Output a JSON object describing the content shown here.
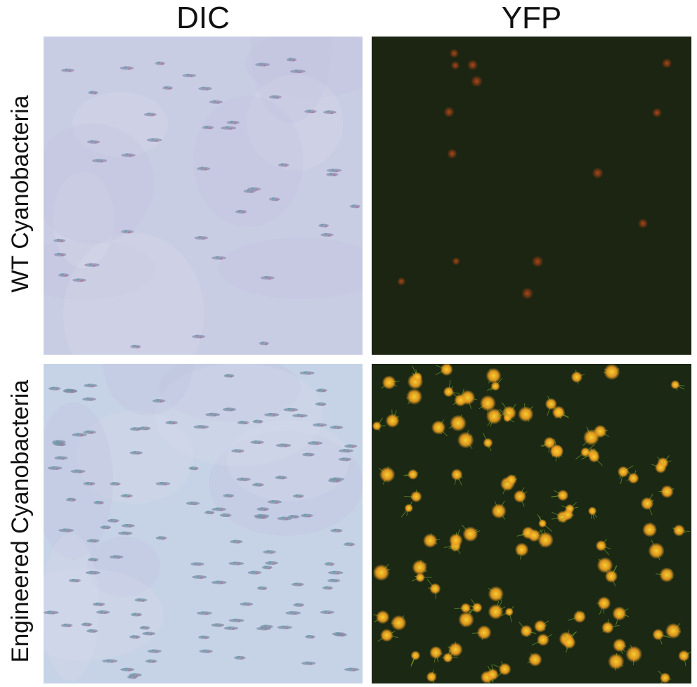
{
  "figure": {
    "columns": [
      {
        "label": "DIC"
      },
      {
        "label": "YFP"
      }
    ],
    "rows": [
      {
        "label": "WT  Cyanobacteria"
      },
      {
        "label": "Engineered Cyanobacteria"
      }
    ],
    "panels": [
      {
        "id": "wt-dic",
        "row": "WT  Cyanobacteria",
        "column": "DIC",
        "background": "#c9cde4",
        "cell_color": "#8e8fb0"
      },
      {
        "id": "wt-yfp",
        "row": "WT  Cyanobacteria",
        "column": "YFP",
        "background": "#1b2512",
        "cell_color": "#8a3a14"
      },
      {
        "id": "eng-dic",
        "row": "Engineered Cyanobacteria",
        "column": "DIC",
        "background": "#c6d3e6",
        "cell_color": "#7f8fa8"
      },
      {
        "id": "eng-yfp",
        "row": "Engineered Cyanobacteria",
        "column": "YFP",
        "background": "#1a2814",
        "cell_color": "#f0a020"
      }
    ]
  }
}
